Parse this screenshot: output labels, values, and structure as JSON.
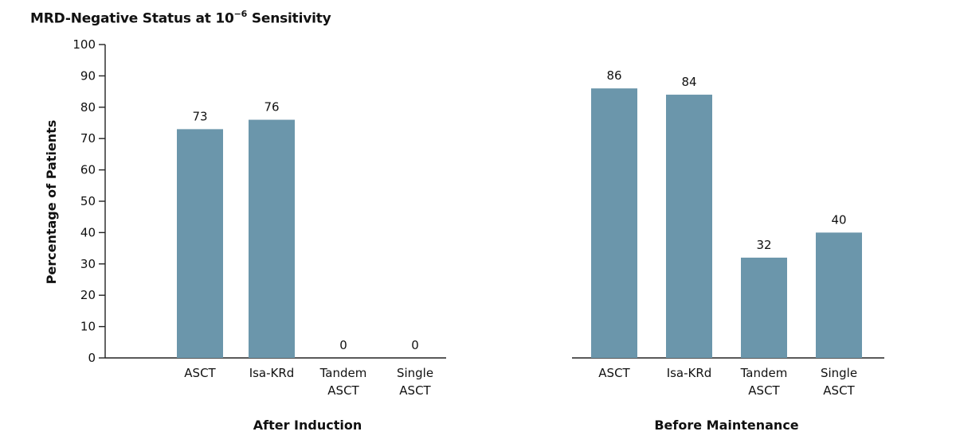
{
  "chart_data": {
    "type": "bar",
    "title_main": "MRD-Negative Status at 10",
    "title_exp": "−6",
    "title_tail": " Sensitivity",
    "ylabel": "Percentage of Patients",
    "ylim": [
      0,
      100
    ],
    "yticks": [
      "0",
      "10",
      "20",
      "30",
      "40",
      "50",
      "60",
      "70",
      "80",
      "90",
      "100"
    ],
    "bar_color": "#6b96ab",
    "groups": [
      {
        "label": "After Induction",
        "bars": [
          {
            "label_lines": [
              "ASCT"
            ],
            "value": 73,
            "value_label": "73"
          },
          {
            "label_lines": [
              "Isa-KRd"
            ],
            "value": 76,
            "value_label": "76"
          },
          {
            "label_lines": [
              "Tandem",
              "ASCT"
            ],
            "value": 0,
            "value_label": "0"
          },
          {
            "label_lines": [
              "Single",
              "ASCT"
            ],
            "value": 0,
            "value_label": "0"
          }
        ]
      },
      {
        "label": "Before Maintenance",
        "bars": [
          {
            "label_lines": [
              "ASCT"
            ],
            "value": 86,
            "value_label": "86"
          },
          {
            "label_lines": [
              "Isa-KRd"
            ],
            "value": 84,
            "value_label": "84"
          },
          {
            "label_lines": [
              "Tandem",
              "ASCT"
            ],
            "value": 32,
            "value_label": "32"
          },
          {
            "label_lines": [
              "Single",
              "ASCT"
            ],
            "value": 40,
            "value_label": "40"
          }
        ]
      }
    ]
  }
}
